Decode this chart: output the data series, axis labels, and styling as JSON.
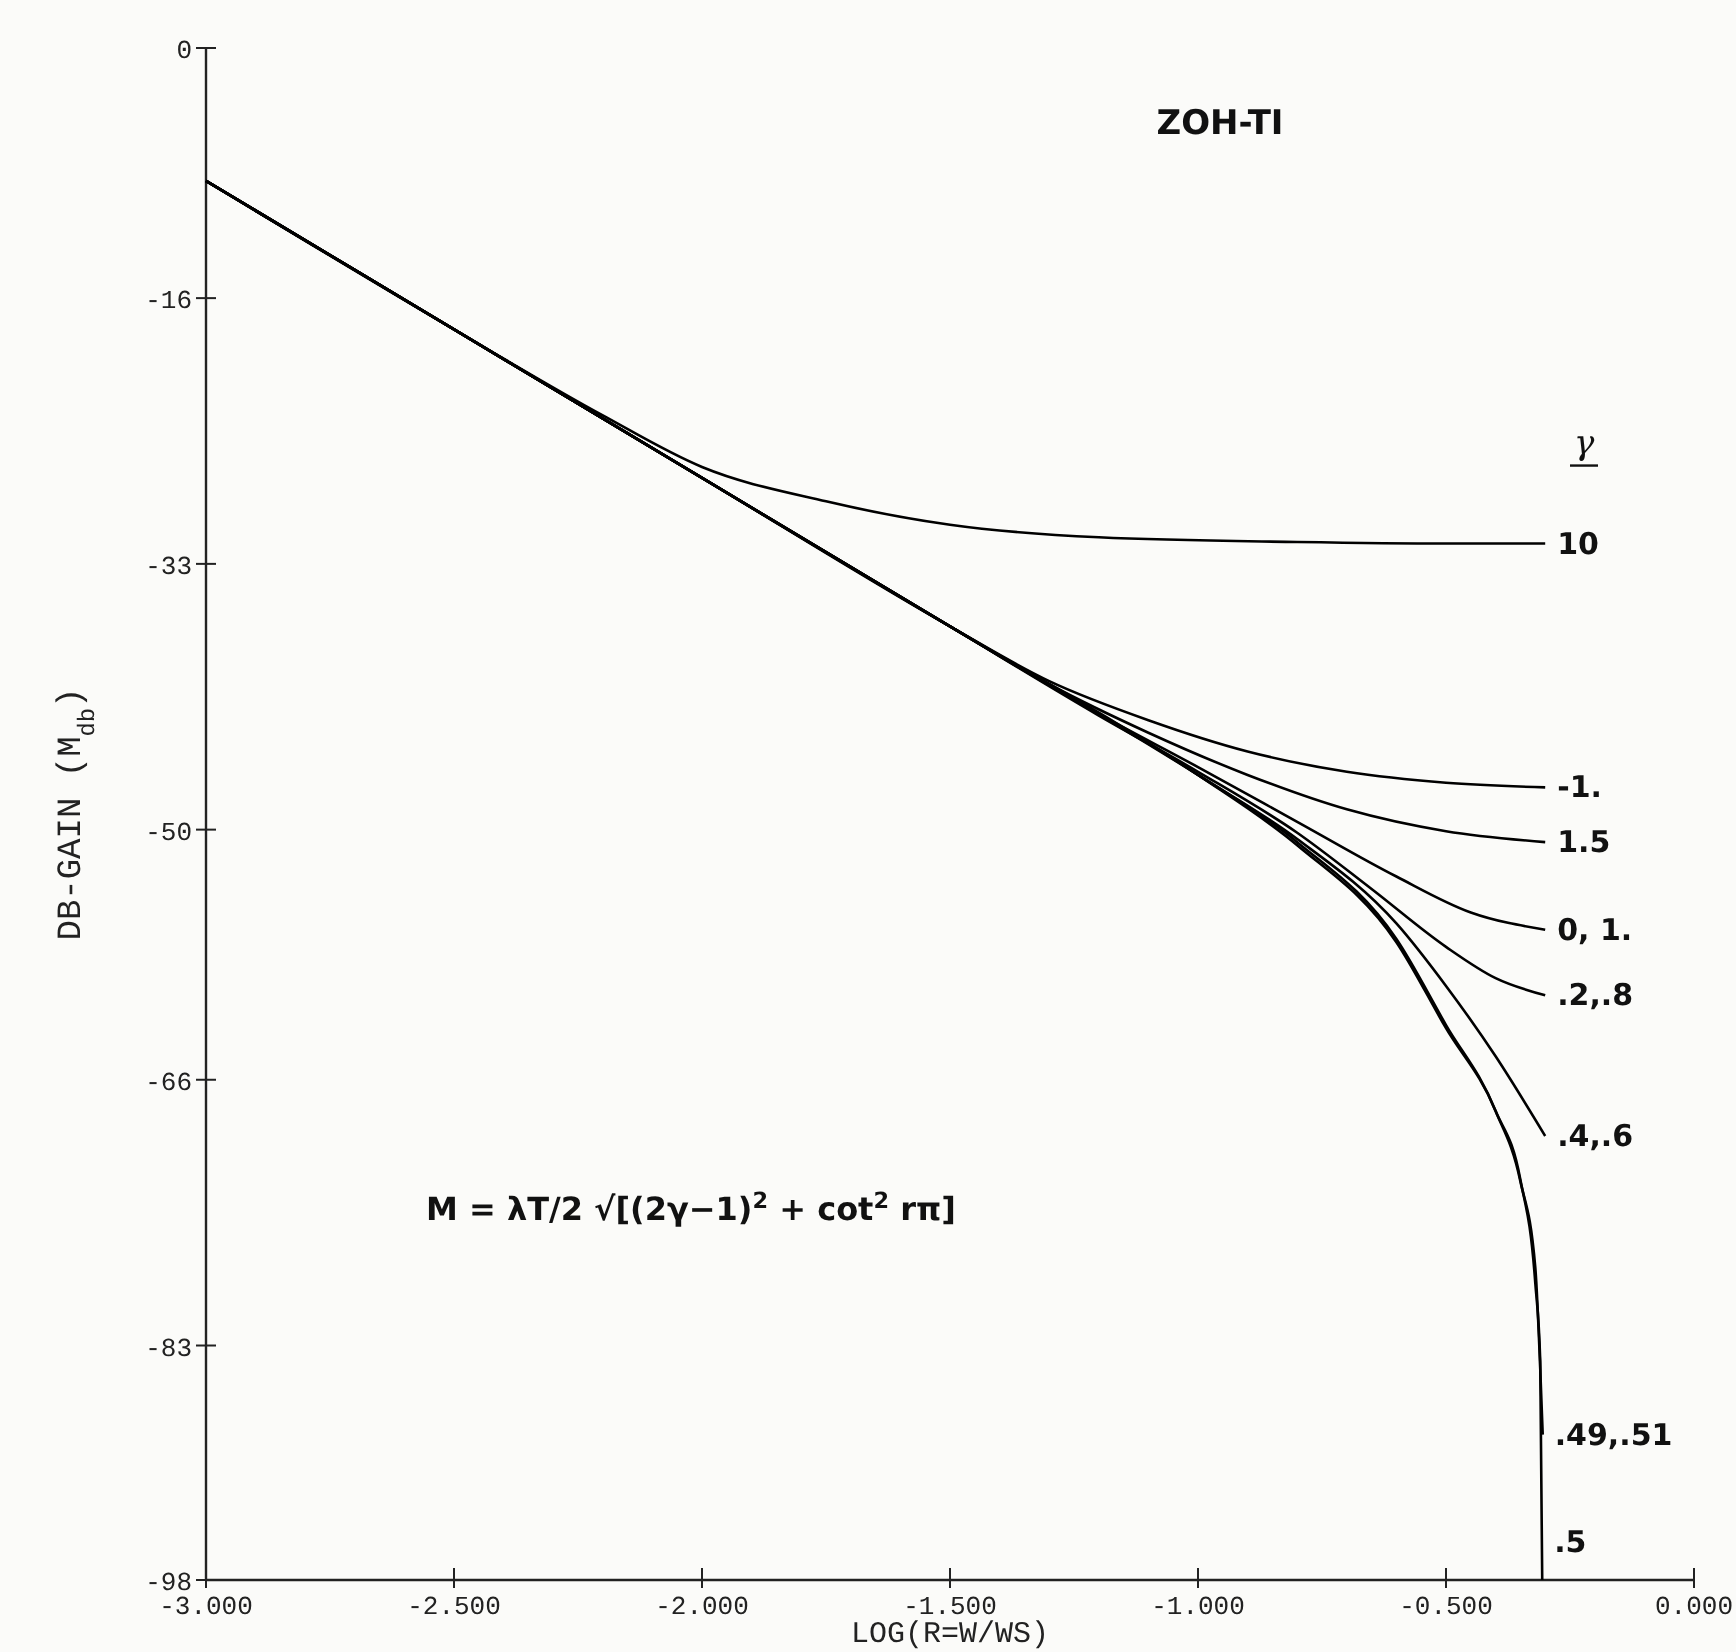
{
  "chart_data": {
    "type": "line",
    "title": "ZOH-TI",
    "xlabel": "LOG(R=W/WS)",
    "ylabel": "DB-GAIN (M$_{db}$)",
    "legend_title": "γ",
    "xlim": [
      -3,
      0
    ],
    "ylim": [
      -98,
      0
    ],
    "xticks": [
      {
        "value": -3,
        "label": "-3.000"
      },
      {
        "value": -2.5,
        "label": "-2.500"
      },
      {
        "value": -2,
        "label": "-2.000"
      },
      {
        "value": -1.5,
        "label": "-1.500"
      },
      {
        "value": -1,
        "label": "-1.000"
      },
      {
        "value": -0.5,
        "label": "-0.500"
      },
      {
        "value": 0,
        "label": "0.000"
      }
    ],
    "yticks": [
      0,
      -16,
      -33,
      -50,
      -66,
      -83,
      -98
    ],
    "grid": false,
    "marker": "none",
    "line_style": "solid",
    "annotations": [
      "M = λT/2 √[(2γ−1)$^{2}$ + cot$^{2}$ rπ]"
    ],
    "series": [
      {
        "name": "10",
        "color": "#000000",
        "x": [
          -3,
          -2.5,
          -2.2,
          -2,
          -1.75,
          -1.5,
          -1.2,
          -0.8,
          -0.5,
          -0.3
        ],
        "values": [
          -8.5,
          -18,
          -23.5,
          -26.8,
          -29,
          -30.5,
          -31.3,
          -31.6,
          -31.7,
          -31.7
        ]
      },
      {
        "name": "-1.",
        "color": "#000000",
        "x": [
          -3,
          -2.5,
          -2,
          -1.5,
          -1.3,
          -1.1,
          -0.9,
          -0.7,
          -0.5,
          -0.3
        ],
        "values": [
          -8.5,
          -18,
          -27.5,
          -37,
          -40.5,
          -43,
          -45,
          -46.3,
          -47,
          -47.3
        ]
      },
      {
        "name": "1.5",
        "color": "#000000",
        "x": [
          -3,
          -2.5,
          -2,
          -1.5,
          -1.3,
          -1.1,
          -0.9,
          -0.7,
          -0.5,
          -0.3
        ],
        "values": [
          -8.5,
          -18,
          -27.5,
          -37,
          -40.7,
          -43.8,
          -46.5,
          -48.7,
          -50.1,
          -50.8
        ]
      },
      {
        "name": "0, 1.",
        "color": "#000000",
        "x": [
          -3,
          -2.5,
          -2,
          -1.5,
          -1.2,
          -1,
          -0.8,
          -0.6,
          -0.45,
          -0.3
        ],
        "values": [
          -8.5,
          -18,
          -27.5,
          -37,
          -42.6,
          -46,
          -49.5,
          -53,
          -55.3,
          -56.4
        ]
      },
      {
        "name": ".2,.8",
        "color": "#000000",
        "x": [
          -3,
          -2.5,
          -2,
          -1.5,
          -1.2,
          -1,
          -0.8,
          -0.65,
          -0.5,
          -0.4,
          -0.3
        ],
        "values": [
          -8.5,
          -18,
          -27.5,
          -37,
          -42.7,
          -46.3,
          -50.2,
          -53.8,
          -57.5,
          -59.5,
          -60.6
        ]
      },
      {
        "name": ".4,.6",
        "color": "#000000",
        "x": [
          -3,
          -2.5,
          -2,
          -1.5,
          -1,
          -0.8,
          -0.6,
          -0.5,
          -0.4,
          -0.3
        ],
        "values": [
          -8.5,
          -18,
          -27.5,
          -37,
          -46.5,
          -50.6,
          -56,
          -60,
          -64.5,
          -69.6
        ]
      },
      {
        "name": ".49,.51",
        "color": "#000000",
        "x": [
          -3,
          -2.5,
          -2,
          -1.5,
          -1,
          -0.8,
          -0.6,
          -0.5,
          -0.4,
          -0.35,
          -0.32,
          -0.31,
          -0.305
        ],
        "values": [
          -8.5,
          -18,
          -27.5,
          -37,
          -46.5,
          -50.8,
          -57,
          -62.5,
          -68,
          -72.5,
          -78,
          -84.5,
          -88.7
        ]
      },
      {
        "name": ".5",
        "color": "#000000",
        "x": [
          -3,
          -2.5,
          -2,
          -1.5,
          -1,
          -0.8,
          -0.6,
          -0.5,
          -0.4,
          -0.35,
          -0.32,
          -0.31,
          -0.306
        ],
        "values": [
          -8.5,
          -18,
          -27.5,
          -37,
          -46.5,
          -51,
          -57.2,
          -62.7,
          -68,
          -72.4,
          -79,
          -84,
          -98
        ]
      }
    ]
  }
}
